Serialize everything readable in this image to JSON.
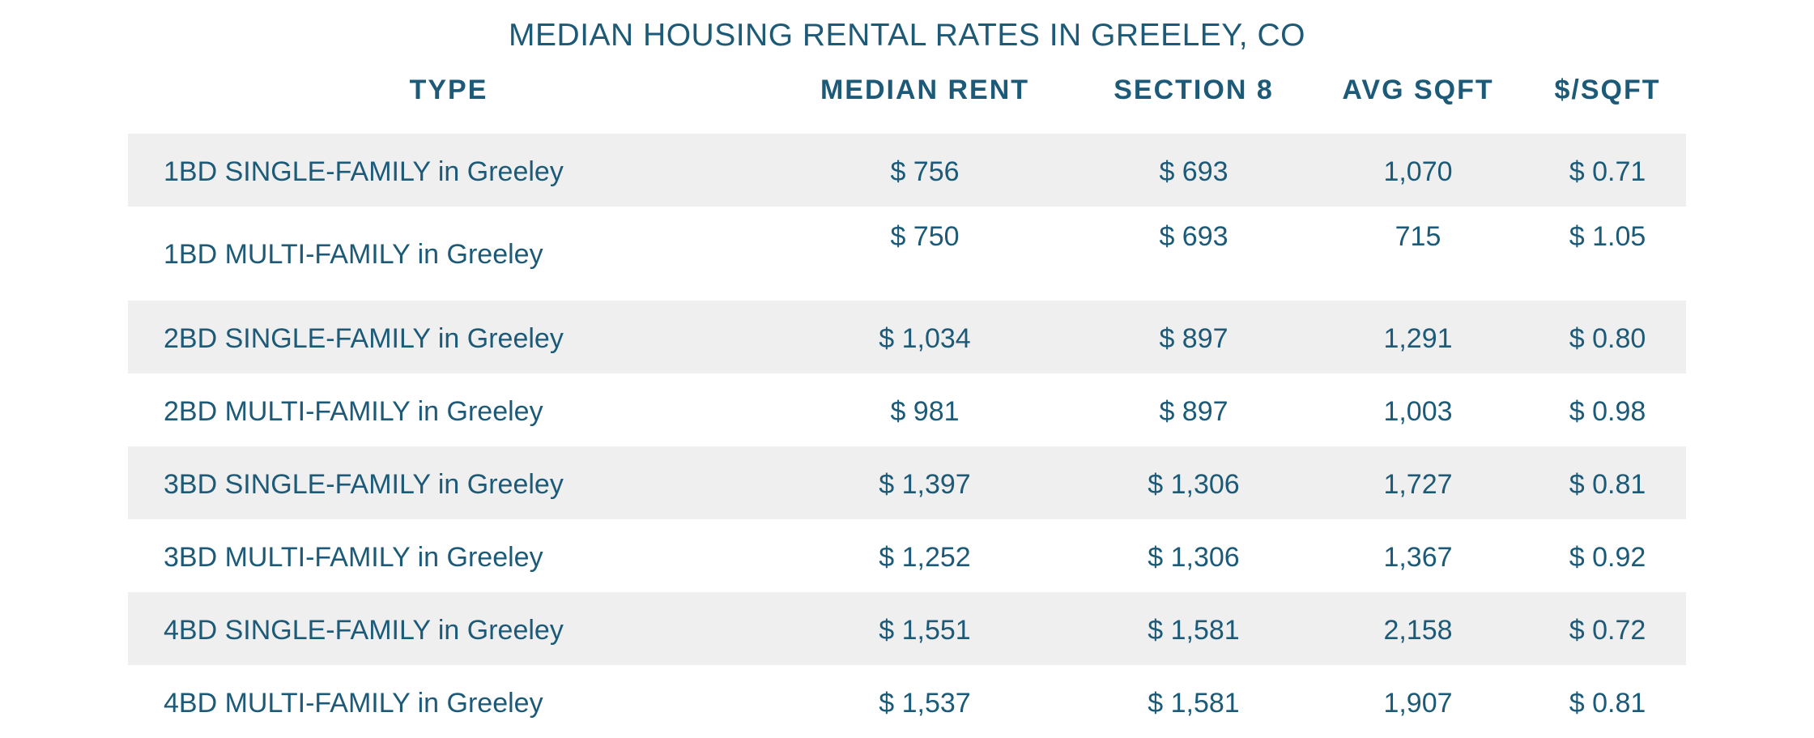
{
  "chart_data": {
    "type": "table",
    "title": "MEDIAN HOUSING RENTAL RATES IN GREELEY, CO",
    "columns": [
      "TYPE",
      "MEDIAN RENT",
      "SECTION 8",
      "AVG SQFT",
      "$/SQFT"
    ],
    "rows": [
      [
        "1BD SINGLE-FAMILY in Greeley",
        "$ 756",
        "$ 693",
        "1,070",
        "$ 0.71"
      ],
      [
        "1BD MULTI-FAMILY in Greeley",
        "$ 750",
        "$ 693",
        "715",
        "$ 1.05"
      ],
      [
        "2BD SINGLE-FAMILY in Greeley",
        "$ 1,034",
        "$ 897",
        "1,291",
        "$ 0.80"
      ],
      [
        "2BD MULTI-FAMILY in Greeley",
        "$ 981",
        "$ 897",
        "1,003",
        "$ 0.98"
      ],
      [
        "3BD SINGLE-FAMILY in Greeley",
        "$ 1,397",
        "$ 1,306",
        "1,727",
        "$ 0.81"
      ],
      [
        "3BD MULTI-FAMILY in Greeley",
        "$ 1,252",
        "$ 1,306",
        "1,367",
        "$ 0.92"
      ],
      [
        "4BD SINGLE-FAMILY in Greeley",
        "$ 1,551",
        "$ 1,581",
        "2,158",
        "$ 0.72"
      ],
      [
        "4BD MULTI-FAMILY in Greeley",
        "$ 1,537",
        "$ 1,581",
        "1,907",
        "$ 0.81"
      ]
    ],
    "values": {
      "median_rent": [
        756,
        750,
        1034,
        981,
        1397,
        1252,
        1551,
        1537
      ],
      "section_8": [
        693,
        693,
        897,
        897,
        1306,
        1306,
        1581,
        1581
      ],
      "avg_sqft": [
        1070,
        715,
        1291,
        1003,
        1727,
        1367,
        2158,
        1907
      ],
      "price_per_sqft": [
        0.71,
        1.05,
        0.8,
        0.98,
        0.81,
        0.92,
        0.72,
        0.81
      ]
    }
  },
  "colors": {
    "text": "#1c5a78",
    "row_shade": "#efefef",
    "background": "#ffffff"
  }
}
